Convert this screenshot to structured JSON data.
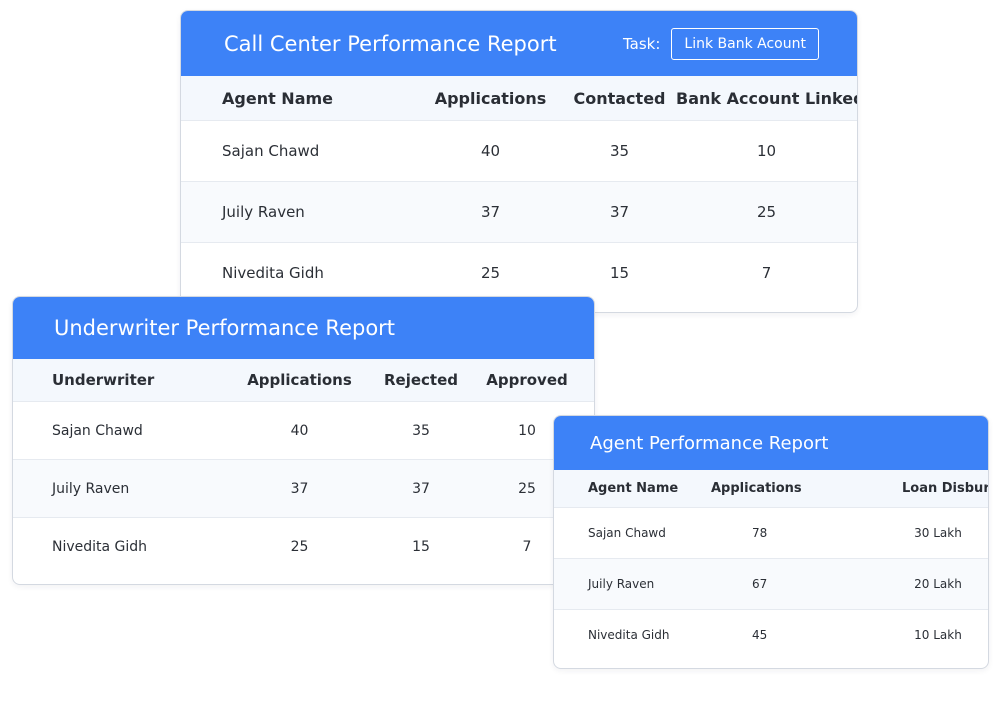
{
  "theme": {
    "accent": "#3d82f7",
    "header_row_bg": "#f4f8fd",
    "border": "#d4d9e1"
  },
  "call_center": {
    "title": "Call Center Performance Report",
    "task_label": "Task:",
    "task_value": "Link Bank Acount",
    "columns": [
      "Agent Name",
      "Applications",
      "Contacted",
      "Bank Account Linked"
    ],
    "rows": [
      [
        "Sajan Chawd",
        "40",
        "35",
        "10"
      ],
      [
        "Juily Raven",
        "37",
        "37",
        "25"
      ],
      [
        "Nivedita Gidh",
        "25",
        "15",
        "7"
      ]
    ]
  },
  "underwriter": {
    "title": "Underwriter Performance Report",
    "columns": [
      "Underwriter",
      "Applications",
      "Rejected",
      "Approved"
    ],
    "rows": [
      [
        "Sajan Chawd",
        "40",
        "35",
        "10"
      ],
      [
        "Juily Raven",
        "37",
        "37",
        "25"
      ],
      [
        "Nivedita Gidh",
        "25",
        "15",
        "7"
      ]
    ]
  },
  "agent": {
    "title": "Agent Performance Report",
    "columns": [
      "Agent Name",
      "Applications",
      "Loan Disbursed"
    ],
    "rows": [
      [
        "Sajan Chawd",
        "78",
        "30 Lakh"
      ],
      [
        "Juily Raven",
        "67",
        "20 Lakh"
      ],
      [
        "Nivedita Gidh",
        "45",
        "10 Lakh"
      ]
    ]
  }
}
